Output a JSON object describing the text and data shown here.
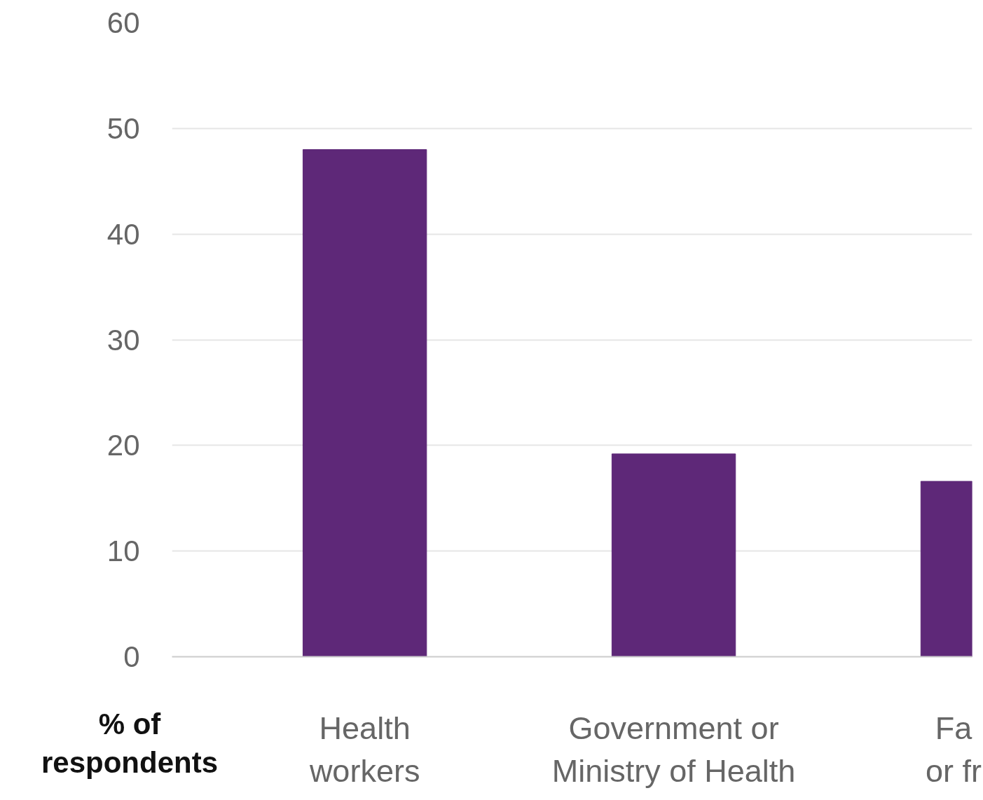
{
  "chart_data": {
    "type": "bar",
    "ylabel": "% of respondents",
    "categories": [
      "Health workers",
      "Government or Ministry of Health",
      "Fa or fr"
    ],
    "values": [
      48,
      19.2,
      16.6
    ],
    "color": "#5e2878",
    "ylim": [
      0,
      60
    ],
    "yticks": [
      0,
      10,
      20,
      30,
      40,
      50,
      60
    ],
    "grid": "y"
  }
}
